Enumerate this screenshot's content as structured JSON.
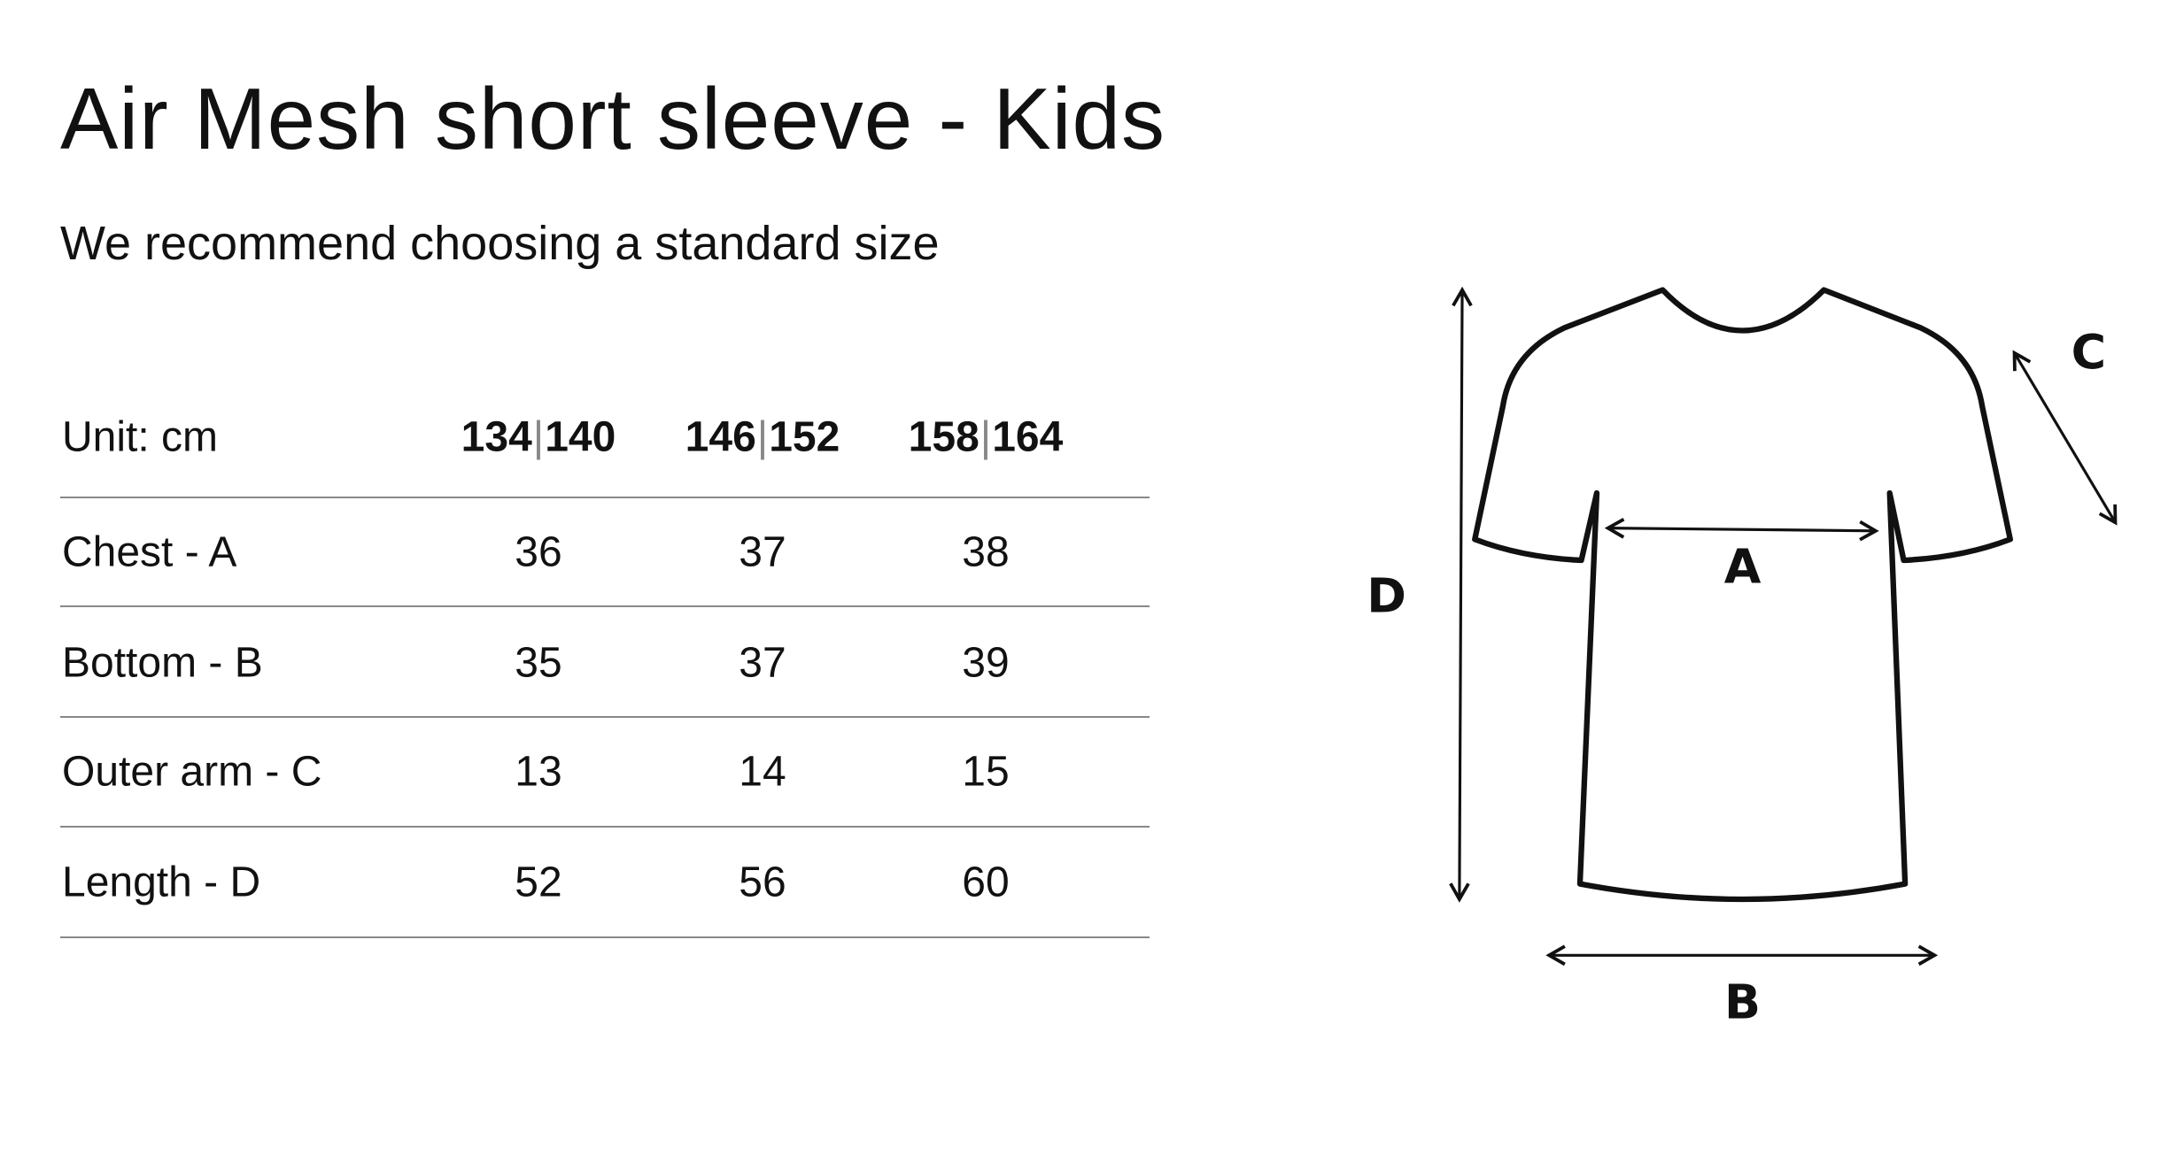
{
  "title": "Air Mesh short sleeve - Kids",
  "subtitle": "We recommend choosing a standard size",
  "table": {
    "unit_label": "Unit: cm",
    "columns": [
      {
        "a": "134",
        "b": "140"
      },
      {
        "a": "146",
        "b": "152"
      },
      {
        "a": "158",
        "b": "164"
      }
    ],
    "separator": "|",
    "rows": [
      {
        "label": "Chest - A",
        "values": [
          "36",
          "37",
          "38"
        ]
      },
      {
        "label": "Bottom - B",
        "values": [
          "35",
          "37",
          "39"
        ]
      },
      {
        "label": "Outer arm - C",
        "values": [
          "13",
          "14",
          "15"
        ]
      },
      {
        "label": "Length - D",
        "values": [
          "52",
          "56",
          "60"
        ]
      }
    ]
  },
  "diagram": {
    "labels": {
      "a": "A",
      "b": "B",
      "c": "C",
      "d": "D"
    },
    "stroke_color": "#111111"
  }
}
